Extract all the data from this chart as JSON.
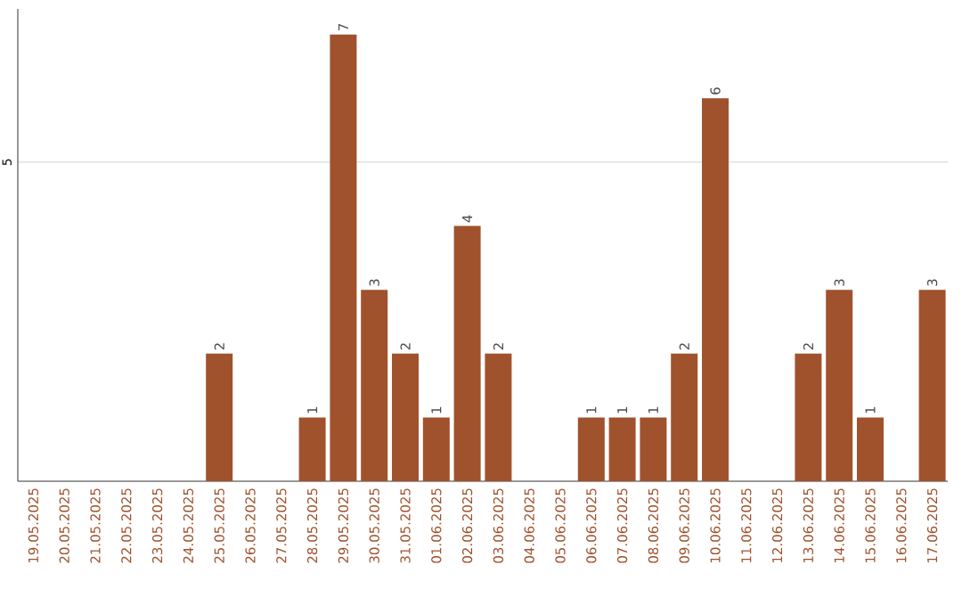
{
  "chart_data": {
    "type": "bar",
    "categories": [
      "19.05.2025",
      "20.05.2025",
      "21.05.2025",
      "22.05.2025",
      "23.05.2025",
      "24.05.2025",
      "25.05.2025",
      "26.05.2025",
      "27.05.2025",
      "28.05.2025",
      "29.05.2025",
      "30.05.2025",
      "31.05.2025",
      "01.06.2025",
      "02.06.2025",
      "03.06.2025",
      "04.06.2025",
      "05.06.2025",
      "06.06.2025",
      "07.06.2025",
      "08.06.2025",
      "09.06.2025",
      "10.06.2025",
      "11.06.2025",
      "12.06.2025",
      "13.06.2025",
      "14.06.2025",
      "15.06.2025",
      "16.06.2025",
      "17.06.2025"
    ],
    "values": [
      0,
      0,
      0,
      0,
      0,
      0,
      2,
      0,
      0,
      1,
      7,
      3,
      2,
      1,
      4,
      2,
      0,
      0,
      1,
      1,
      1,
      2,
      6,
      0,
      0,
      2,
      3,
      1,
      0,
      3
    ],
    "value_labels": [
      null,
      null,
      null,
      null,
      null,
      null,
      "2",
      null,
      null,
      "1",
      "7",
      "3",
      "2",
      "1",
      "4",
      "2",
      null,
      null,
      "1",
      "1",
      "1",
      "2",
      "6",
      null,
      null,
      "2",
      "3",
      "1",
      null,
      "3"
    ],
    "color": "#a0522d",
    "ylim": [
      0,
      7.4
    ],
    "yticks": [
      5
    ],
    "grid": "y"
  }
}
